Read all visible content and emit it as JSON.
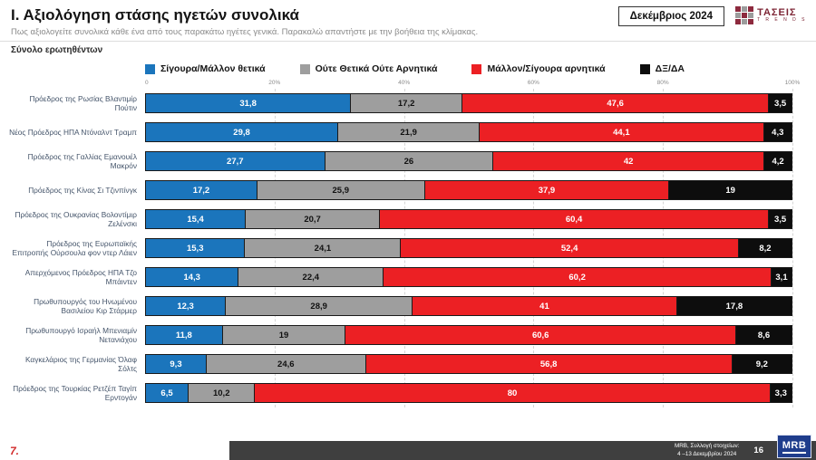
{
  "header": {
    "title": "Ι. Αξιολόγηση στάσης ηγετών συνολικά",
    "subtitle": "Πως αξιολογείτε συνολικά κάθε ένα από τους παρακάτω ηγέτες γενικά. Παρακαλώ απαντήστε με την βοήθεια της κλίμακας.",
    "sample_label": "Σύνολο ερωτηθέντων",
    "date_badge": "Δεκέμβριος 2024",
    "brand": {
      "name": "ΤΑΣΕΙΣ",
      "sub": "T R E N D S",
      "color": "#8d2a3e"
    }
  },
  "chart_data": {
    "type": "bar",
    "variant": "horizontal-stacked-100",
    "xlim": [
      0,
      100
    ],
    "grid": true,
    "legend_position": "top",
    "axis_ticks": [
      {
        "label": "0",
        "pos": 0
      },
      {
        "label": "20%",
        "pos": 20
      },
      {
        "label": "40%",
        "pos": 40
      },
      {
        "label": "60%",
        "pos": 60
      },
      {
        "label": "80%",
        "pos": 80
      },
      {
        "label": "100%",
        "pos": 100
      }
    ],
    "categories": [
      "Πρόεδρος της Ρωσίας Βλαντιμίρ Πούτιν",
      "Νέος Πρόεδρος ΗΠΑ Ντόναλντ Τραμπ",
      "Πρόεδρος της Γαλλίας Εμανουέλ Μακρόν",
      "Πρόεδρος της Κίνας Σι Τζινπίνγκ",
      "Πρόεδρος της Ουκρανίας Βολοντίμιρ Ζελένσκι",
      "Πρόεδρος της Ευρωπαϊκής Επιτροπής Ούρσουλα φον ντερ Λάιεν",
      "Απερχόμενος Πρόεδρος ΗΠΑ Τζο Μπάιντεν",
      "Πρωθυπουργός του Ηνωμένου Βασιλείου Κιρ Στάρμερ",
      "Πρωθυπουργό Ισραήλ Μπενιαμίν Νετανιάχου",
      "Καγκελάριος της Γερμανίας Όλαφ Σόλτς",
      "Πρόεδρος της Τουρκίας Ρετζέπ Ταγίπ Ερντογάν"
    ],
    "series": [
      {
        "key": "positive",
        "name": "Σίγουρα/Μάλλον θετικά",
        "color": "#1b75bc",
        "text_color": "#ffffff",
        "values": [
          31.8,
          29.8,
          27.7,
          17.2,
          15.4,
          15.3,
          14.3,
          12.3,
          11.8,
          9.3,
          6.5
        ],
        "labels": [
          "31,8",
          "29,8",
          "27,7",
          "17,2",
          "15,4",
          "15,3",
          "14,3",
          "12,3",
          "11,8",
          "9,3",
          "6,5"
        ]
      },
      {
        "key": "neutral",
        "name": "Ούτε Θετικά Ούτε Αρνητικά",
        "color": "#9e9e9e",
        "text_color": "#111111",
        "values": [
          17.2,
          21.9,
          26,
          25.9,
          20.7,
          24.1,
          22.4,
          28.9,
          19,
          24.6,
          10.2
        ],
        "labels": [
          "17,2",
          "21,9",
          "26",
          "25,9",
          "20,7",
          "24,1",
          "22,4",
          "28,9",
          "19",
          "24,6",
          "10,2"
        ]
      },
      {
        "key": "negative",
        "name": "Μάλλον/Σίγουρα αρνητικά",
        "color": "#ec2024",
        "text_color": "#ffffff",
        "values": [
          47.6,
          44.1,
          42,
          37.9,
          60.4,
          52.4,
          60.2,
          41,
          60.6,
          56.8,
          80
        ],
        "labels": [
          "47,6",
          "44,1",
          "42",
          "37,9",
          "60,4",
          "52,4",
          "60,2",
          "41",
          "60,6",
          "56,8",
          "80"
        ]
      },
      {
        "key": "dk",
        "name": "ΔΞ/ΔΑ",
        "color": "#0d0d0d",
        "text_color": "#ffffff",
        "values": [
          3.5,
          4.3,
          4.2,
          19,
          3.5,
          8.2,
          3.1,
          17.8,
          8.6,
          9.2,
          3.3
        ],
        "labels": [
          "3,5",
          "4,3",
          "4,2",
          "19",
          "3,5",
          "8,2",
          "3,1",
          "17,8",
          "8,6",
          "9,2",
          "3,3"
        ]
      }
    ]
  },
  "footer": {
    "slide_number": "7.",
    "source_line1": "MRB, Συλλογή στοιχείων:",
    "source_line2": "4 –13 Δεκεμβρίου 2024",
    "page_number": "16",
    "logo": "MRB"
  }
}
